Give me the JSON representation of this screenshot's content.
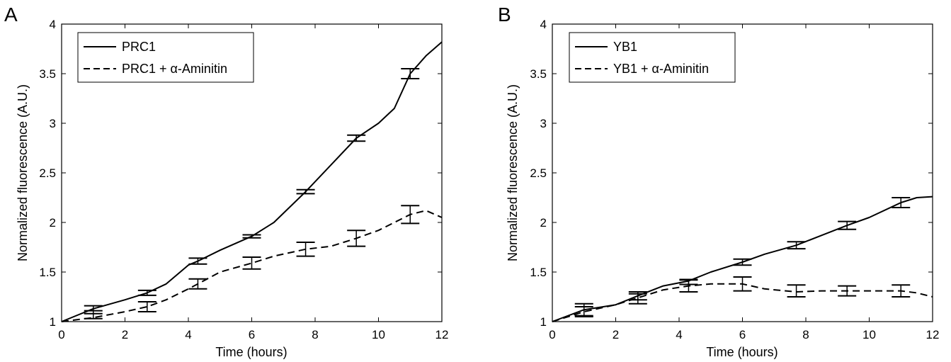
{
  "chart_data": [
    {
      "type": "line",
      "panel": "A",
      "xlabel": "Time (hours)",
      "ylabel": "Normalized fluorescence (A.U.)",
      "xlim": [
        0,
        12
      ],
      "ylim": [
        1,
        4
      ],
      "xticks": [
        "0",
        "2",
        "4",
        "6",
        "8",
        "10",
        "12"
      ],
      "yticks": [
        "1",
        "1.5",
        "2",
        "2.5",
        "3",
        "3.5",
        "4"
      ],
      "legend_position": "top-left",
      "series": [
        {
          "name": "PRC1",
          "style": "solid",
          "x": [
            0,
            1,
            2,
            2.7,
            3.3,
            4,
            4.3,
            5,
            6,
            6.7,
            7.7,
            8.5,
            9.3,
            10,
            10.5,
            11,
            11.5,
            12
          ],
          "y": [
            1.0,
            1.13,
            1.22,
            1.29,
            1.38,
            1.57,
            1.61,
            1.72,
            1.86,
            2.0,
            2.31,
            2.58,
            2.85,
            3.0,
            3.15,
            3.5,
            3.68,
            3.82
          ],
          "errorbars": [
            {
              "x": 1.0,
              "y": 1.12,
              "err": 0.04
            },
            {
              "x": 2.7,
              "y": 1.29,
              "err": 0.025
            },
            {
              "x": 4.3,
              "y": 1.61,
              "err": 0.03
            },
            {
              "x": 6.0,
              "y": 1.86,
              "err": 0.015
            },
            {
              "x": 7.7,
              "y": 2.31,
              "err": 0.02
            },
            {
              "x": 9.3,
              "y": 2.85,
              "err": 0.03
            },
            {
              "x": 11.0,
              "y": 3.5,
              "err": 0.05
            }
          ]
        },
        {
          "name": "PRC1 + α-Aminitin",
          "style": "dashed",
          "x": [
            0,
            1,
            2,
            2.7,
            3.3,
            4,
            4.3,
            5,
            6,
            6.7,
            7.7,
            8.5,
            9.3,
            10,
            10.5,
            11,
            11.5,
            12
          ],
          "y": [
            1.0,
            1.04,
            1.1,
            1.15,
            1.22,
            1.33,
            1.38,
            1.5,
            1.59,
            1.66,
            1.73,
            1.76,
            1.84,
            1.92,
            2.0,
            2.08,
            2.12,
            2.05
          ],
          "errorbars": [
            {
              "x": 1.0,
              "y": 1.07,
              "err": 0.04
            },
            {
              "x": 2.7,
              "y": 1.15,
              "err": 0.05
            },
            {
              "x": 4.3,
              "y": 1.38,
              "err": 0.05
            },
            {
              "x": 6.0,
              "y": 1.59,
              "err": 0.06
            },
            {
              "x": 7.7,
              "y": 1.73,
              "err": 0.07
            },
            {
              "x": 9.3,
              "y": 1.84,
              "err": 0.08
            },
            {
              "x": 11.0,
              "y": 2.08,
              "err": 0.09
            }
          ]
        }
      ]
    },
    {
      "type": "line",
      "panel": "B",
      "xlabel": "Time (hours)",
      "ylabel": "Normalized fluorescence (A.U.)",
      "xlim": [
        0,
        12
      ],
      "ylim": [
        1,
        4
      ],
      "xticks": [
        "0",
        "2",
        "4",
        "6",
        "8",
        "10",
        "12"
      ],
      "yticks": [
        "1",
        "1.5",
        "2",
        "2.5",
        "3",
        "3.5",
        "4"
      ],
      "legend_position": "top-left",
      "series": [
        {
          "name": "YB1",
          "style": "solid",
          "x": [
            0,
            1,
            2,
            2.7,
            3.5,
            4.3,
            5,
            6,
            6.7,
            7.7,
            8.5,
            9.3,
            10,
            11,
            11.5,
            12
          ],
          "y": [
            1.0,
            1.12,
            1.17,
            1.26,
            1.36,
            1.41,
            1.5,
            1.6,
            1.68,
            1.77,
            1.87,
            1.97,
            2.05,
            2.2,
            2.25,
            2.26
          ],
          "errorbars": [
            {
              "x": 1.0,
              "y": 1.12,
              "err": 0.06
            },
            {
              "x": 2.7,
              "y": 1.26,
              "err": 0.04
            },
            {
              "x": 4.3,
              "y": 1.4,
              "err": 0.025
            },
            {
              "x": 6.0,
              "y": 1.6,
              "err": 0.03
            },
            {
              "x": 7.7,
              "y": 1.77,
              "err": 0.035
            },
            {
              "x": 9.3,
              "y": 1.97,
              "err": 0.04
            },
            {
              "x": 11.0,
              "y": 2.2,
              "err": 0.05
            }
          ]
        },
        {
          "name": "YB1 + α-Aminitin",
          "style": "dashed",
          "x": [
            0,
            1,
            2,
            2.7,
            3.5,
            4.3,
            5,
            6,
            6.7,
            7.7,
            8.5,
            9.3,
            10,
            11,
            11.5,
            12
          ],
          "y": [
            1.0,
            1.1,
            1.17,
            1.24,
            1.32,
            1.36,
            1.38,
            1.38,
            1.33,
            1.3,
            1.31,
            1.31,
            1.31,
            1.31,
            1.29,
            1.25
          ],
          "errorbars": [
            {
              "x": 1.0,
              "y": 1.1,
              "err": 0.05
            },
            {
              "x": 2.7,
              "y": 1.23,
              "err": 0.05
            },
            {
              "x": 4.3,
              "y": 1.36,
              "err": 0.06
            },
            {
              "x": 6.0,
              "y": 1.38,
              "err": 0.07
            },
            {
              "x": 7.7,
              "y": 1.31,
              "err": 0.06
            },
            {
              "x": 9.3,
              "y": 1.31,
              "err": 0.05
            },
            {
              "x": 11.0,
              "y": 1.31,
              "err": 0.06
            }
          ]
        }
      ]
    }
  ]
}
